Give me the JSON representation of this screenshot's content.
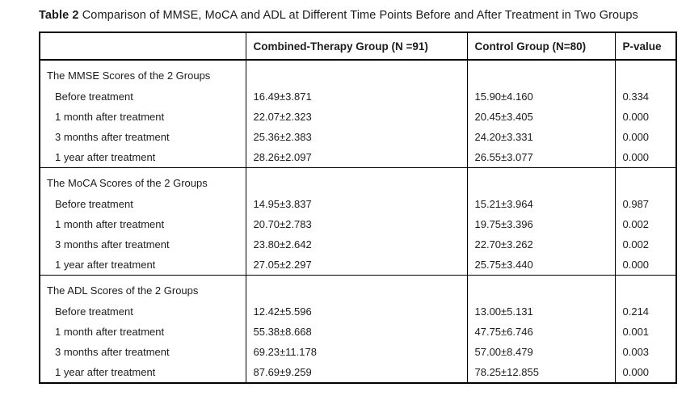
{
  "title": {
    "label": "Table 2",
    "text": "Comparison of MMSE, MoCA and ADL at Different Time Points Before and After Treatment in Two Groups"
  },
  "table": {
    "columns": {
      "rowhead": "",
      "combined": "Combined-Therapy Group (N =91)",
      "control": "Control Group (N=80)",
      "pvalue": "P-value"
    },
    "sections": [
      {
        "header": "The MMSE Scores of the 2 Groups",
        "rows": [
          {
            "label": "Before treatment",
            "combined": "16.49±3.871",
            "control": "15.90±4.160",
            "p": "0.334"
          },
          {
            "label": "1 month after treatment",
            "combined": "22.07±2.323",
            "control": "20.45±3.405",
            "p": "0.000"
          },
          {
            "label": "3 months after treatment",
            "combined": "25.36±2.383",
            "control": "24.20±3.331",
            "p": "0.000"
          },
          {
            "label": "1 year after treatment",
            "combined": "28.26±2.097",
            "control": "26.55±3.077",
            "p": "0.000"
          }
        ]
      },
      {
        "header": "The MoCA Scores of the 2 Groups",
        "rows": [
          {
            "label": "Before treatment",
            "combined": "14.95±3.837",
            "control": "15.21±3.964",
            "p": "0.987"
          },
          {
            "label": "1 month after treatment",
            "combined": "20.70±2.783",
            "control": "19.75±3.396",
            "p": "0.002"
          },
          {
            "label": "3 months after treatment",
            "combined": "23.80±2.642",
            "control": "22.70±3.262",
            "p": "0.002"
          },
          {
            "label": "1 year after treatment",
            "combined": "27.05±2.297",
            "control": "25.75±3.440",
            "p": "0.000"
          }
        ]
      },
      {
        "header": "The ADL Scores of the 2 Groups",
        "rows": [
          {
            "label": "Before treatment",
            "combined": "12.42±5.596",
            "control": "13.00±5.131",
            "p": "0.214"
          },
          {
            "label": "1 month after treatment",
            "combined": "55.38±8.668",
            "control": "47.75±6.746",
            "p": "0.001"
          },
          {
            "label": "3 months after treatment",
            "combined": "69.23±11.178",
            "control": "57.00±8.479",
            "p": "0.003"
          },
          {
            "label": "1 year after treatment",
            "combined": "87.69±9.259",
            "control": "78.25±12.855",
            "p": "0.000"
          }
        ]
      }
    ]
  }
}
